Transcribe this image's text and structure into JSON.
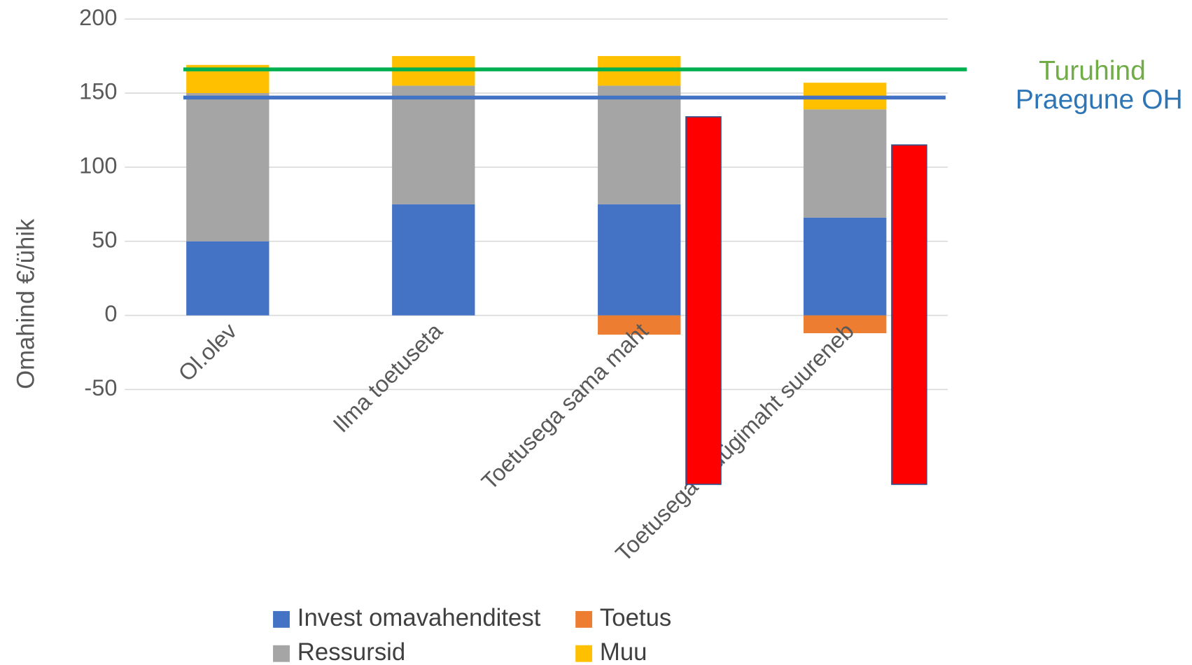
{
  "chart_data": {
    "type": "stacked_bar",
    "y_axis_label": "Omahind €/ühik",
    "categories": [
      "Ol.olev",
      "Ilma toetuseta",
      "Toetusega sama maht",
      "Toetusega müügimaht suureneb"
    ],
    "series": [
      {
        "name": "Invest omavahenditest",
        "color": "#4472c4",
        "values": [
          50,
          75,
          75,
          66
        ]
      },
      {
        "name": "Toetus",
        "color": "#ed7d31",
        "values": [
          0,
          0,
          -13,
          -12
        ]
      },
      {
        "name": "Ressursid",
        "color": "#a5a5a5",
        "values": [
          100,
          80,
          80,
          73
        ]
      },
      {
        "name": "Muu",
        "color": "#ffc000",
        "values": [
          19,
          20,
          20,
          18
        ]
      }
    ],
    "range_bars": {
      "color": "#ff0000",
      "lows": [
        null,
        null,
        -114,
        -114
      ],
      "highs": [
        null,
        null,
        134,
        115
      ]
    },
    "reference_lines": [
      {
        "label": "Turuhind",
        "value": 166,
        "color": "#00b050",
        "label_color": "#70ad47"
      },
      {
        "label": "Praegune OH",
        "value": 147,
        "color": "#4472c4",
        "label_color": "#2e75b6"
      }
    ],
    "ylim": [
      -50,
      200
    ],
    "yticks": [
      -50,
      0,
      50,
      100,
      150,
      200
    ],
    "grid": true
  }
}
